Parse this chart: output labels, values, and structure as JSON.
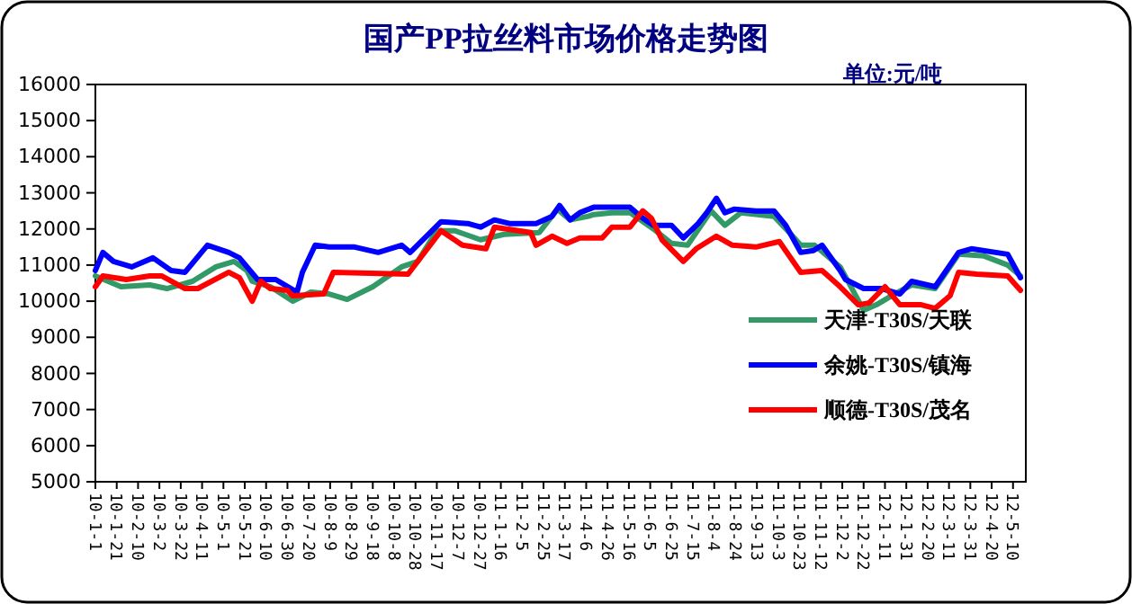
{
  "chart_data": {
    "type": "line",
    "title": "国产PP拉丝料市场价格走势图",
    "annotations": [
      "单位:元/吨"
    ],
    "xlim": [
      "2010-01-01",
      "2012-05-22"
    ],
    "xticks": [
      {
        "value": "2010-01-01",
        "label": "10-1-1"
      },
      {
        "value": "2010-01-21",
        "label": "10-1-21"
      },
      {
        "value": "2010-02-10",
        "label": "10-2-10"
      },
      {
        "value": "2010-03-02",
        "label": "10-3-2"
      },
      {
        "value": "2010-03-22",
        "label": "10-3-22"
      },
      {
        "value": "2010-04-11",
        "label": "10-4-11"
      },
      {
        "value": "2010-05-01",
        "label": "10-5-1"
      },
      {
        "value": "2010-05-21",
        "label": "10-5-21"
      },
      {
        "value": "2010-06-10",
        "label": "10-6-10"
      },
      {
        "value": "2010-06-30",
        "label": "10-6-30"
      },
      {
        "value": "2010-07-20",
        "label": "10-7-20"
      },
      {
        "value": "2010-08-09",
        "label": "10-8-9"
      },
      {
        "value": "2010-08-29",
        "label": "10-8-29"
      },
      {
        "value": "2010-09-18",
        "label": "10-9-18"
      },
      {
        "value": "2010-10-08",
        "label": "10-10-8"
      },
      {
        "value": "2010-10-28",
        "label": "10-10-28"
      },
      {
        "value": "2010-11-17",
        "label": "10-11-17"
      },
      {
        "value": "2010-12-07",
        "label": "10-12-7"
      },
      {
        "value": "2010-12-27",
        "label": "10-12-27"
      },
      {
        "value": "2011-01-16",
        "label": "11-1-16"
      },
      {
        "value": "2011-02-05",
        "label": "11-2-5"
      },
      {
        "value": "2011-02-25",
        "label": "11-2-25"
      },
      {
        "value": "2011-03-17",
        "label": "11-3-17"
      },
      {
        "value": "2011-04-06",
        "label": "11-4-6"
      },
      {
        "value": "2011-04-26",
        "label": "11-4-26"
      },
      {
        "value": "2011-05-16",
        "label": "11-5-16"
      },
      {
        "value": "2011-06-05",
        "label": "11-6-5"
      },
      {
        "value": "2011-06-25",
        "label": "11-6-25"
      },
      {
        "value": "2011-07-15",
        "label": "11-7-15"
      },
      {
        "value": "2011-08-04",
        "label": "11-8-4"
      },
      {
        "value": "2011-08-24",
        "label": "11-8-24"
      },
      {
        "value": "2011-09-13",
        "label": "11-9-13"
      },
      {
        "value": "2011-10-03",
        "label": "11-10-3"
      },
      {
        "value": "2011-10-23",
        "label": "11-10-23"
      },
      {
        "value": "2011-11-12",
        "label": "11-11-12"
      },
      {
        "value": "2011-12-02",
        "label": "11-12-2"
      },
      {
        "value": "2011-12-22",
        "label": "11-12-22"
      },
      {
        "value": "2012-01-11",
        "label": "12-1-11"
      },
      {
        "value": "2012-01-31",
        "label": "12-1-31"
      },
      {
        "value": "2012-02-20",
        "label": "12-2-20"
      },
      {
        "value": "2012-03-11",
        "label": "12-3-11"
      },
      {
        "value": "2012-03-31",
        "label": "12-3-31"
      },
      {
        "value": "2012-04-20",
        "label": "12-4-20"
      },
      {
        "value": "2012-05-10",
        "label": "12-5-10"
      }
    ],
    "ylim": [
      5000,
      16000
    ],
    "yticks": [
      5000,
      6000,
      7000,
      8000,
      9000,
      10000,
      11000,
      12000,
      13000,
      14000,
      15000,
      16000
    ],
    "grid": false,
    "legend": "bottom right",
    "marker": "none",
    "line_style": "solid",
    "series": [
      {
        "name": "天津-T30S/天联",
        "color": "#339966",
        "x": [
          "2010-01-01",
          "2010-01-09",
          "2010-01-25",
          "2010-02-21",
          "2010-03-09",
          "2010-04-02",
          "2010-04-24",
          "2010-05-11",
          "2010-05-23",
          "2010-05-28",
          "2010-06-14",
          "2010-07-05",
          "2010-07-22",
          "2010-08-08",
          "2010-08-25",
          "2010-09-18",
          "2010-10-15",
          "2010-10-30",
          "2010-11-17",
          "2010-12-04",
          "2010-12-28",
          "2011-01-19",
          "2011-02-21",
          "2011-03-10",
          "2011-03-22",
          "2011-04-08",
          "2011-04-13",
          "2011-04-30",
          "2011-05-17",
          "2011-06-08",
          "2011-06-25",
          "2011-07-10",
          "2011-08-01",
          "2011-08-14",
          "2011-08-29",
          "2011-09-29",
          "2011-10-15",
          "2011-10-24",
          "2011-11-06",
          "2011-11-30",
          "2011-12-22",
          "2012-01-03",
          "2012-01-20",
          "2012-02-05",
          "2012-02-27",
          "2012-03-20",
          "2012-04-13",
          "2012-05-05",
          "2012-05-17"
        ],
        "values": [
          10700,
          10600,
          10400,
          10450,
          10350,
          10550,
          10950,
          11100,
          10850,
          10550,
          10400,
          10000,
          10250,
          10200,
          10050,
          10400,
          10950,
          11100,
          11950,
          11950,
          11700,
          11850,
          11900,
          12550,
          12250,
          12350,
          12400,
          12450,
          12450,
          12000,
          11600,
          11550,
          12500,
          12100,
          12450,
          12350,
          11850,
          11550,
          11550,
          10950,
          9750,
          9900,
          10200,
          10450,
          10350,
          11300,
          11250,
          11000,
          10700
        ]
      },
      {
        "name": "余姚-T30S/镇海",
        "color": "#0000ff",
        "x": [
          "2010-01-01",
          "2010-01-08",
          "2010-01-18",
          "2010-02-04",
          "2010-02-24",
          "2010-03-13",
          "2010-03-26",
          "2010-04-16",
          "2010-05-06",
          "2010-05-16",
          "2010-06-02",
          "2010-06-19",
          "2010-07-09",
          "2010-07-14",
          "2010-07-26",
          "2010-08-08",
          "2010-09-01",
          "2010-09-23",
          "2010-10-15",
          "2010-10-23",
          "2010-11-21",
          "2010-12-16",
          "2010-12-28",
          "2011-01-10",
          "2011-01-24",
          "2011-02-18",
          "2011-03-05",
          "2011-03-12",
          "2011-03-22",
          "2011-03-31",
          "2011-04-13",
          "2011-05-17",
          "2011-05-29",
          "2011-06-08",
          "2011-06-25",
          "2011-07-06",
          "2011-07-20",
          "2011-07-28",
          "2011-08-06",
          "2011-08-14",
          "2011-08-23",
          "2011-09-12",
          "2011-09-29",
          "2011-10-10",
          "2011-10-24",
          "2011-11-05",
          "2011-11-13",
          "2011-11-30",
          "2011-12-05",
          "2011-12-22",
          "2012-01-08",
          "2012-01-25",
          "2012-02-05",
          "2012-02-27",
          "2012-03-20",
          "2012-04-01",
          "2012-05-05",
          "2012-05-17"
        ],
        "values": [
          10850,
          11350,
          11100,
          10950,
          11200,
          10850,
          10800,
          11550,
          11350,
          11200,
          10600,
          10600,
          10250,
          10800,
          11550,
          11500,
          11500,
          11350,
          11550,
          11350,
          12200,
          12150,
          12050,
          12250,
          12150,
          12150,
          12350,
          12650,
          12250,
          12450,
          12600,
          12600,
          12300,
          12100,
          12100,
          11750,
          12150,
          12450,
          12850,
          12450,
          12550,
          12500,
          12500,
          12100,
          11350,
          11400,
          11550,
          10850,
          10600,
          10350,
          10350,
          10200,
          10550,
          10400,
          11350,
          11450,
          11300,
          10650
        ]
      },
      {
        "name": "顺德-T30S/茂名",
        "color": "#ff0000",
        "x": [
          "2010-01-01",
          "2010-01-08",
          "2010-01-30",
          "2010-02-21",
          "2010-03-04",
          "2010-03-26",
          "2010-04-07",
          "2010-05-06",
          "2010-05-16",
          "2010-05-28",
          "2010-06-05",
          "2010-06-14",
          "2010-06-30",
          "2010-07-05",
          "2010-08-03",
          "2010-08-12",
          "2010-10-21",
          "2010-11-21",
          "2010-12-11",
          "2011-01-02",
          "2011-01-10",
          "2011-02-13",
          "2011-02-18",
          "2011-03-05",
          "2011-03-19",
          "2011-03-31",
          "2011-04-21",
          "2011-04-30",
          "2011-05-17",
          "2011-05-29",
          "2011-06-06",
          "2011-06-16",
          "2011-07-06",
          "2011-07-18",
          "2011-08-06",
          "2011-08-21",
          "2011-09-12",
          "2011-10-04",
          "2011-10-24",
          "2011-11-13",
          "2011-11-30",
          "2011-12-17",
          "2011-12-27",
          "2012-01-11",
          "2012-01-25",
          "2012-02-14",
          "2012-02-27",
          "2012-03-12",
          "2012-03-20",
          "2012-04-06",
          "2012-05-05",
          "2012-05-17"
        ],
        "values": [
          10400,
          10700,
          10600,
          10700,
          10700,
          10350,
          10350,
          10800,
          10650,
          10000,
          10550,
          10350,
          10300,
          10150,
          10200,
          10800,
          10750,
          11950,
          11550,
          11450,
          12050,
          11900,
          11550,
          11800,
          11600,
          11750,
          11750,
          12050,
          12050,
          12500,
          12300,
          11700,
          11100,
          11450,
          11800,
          11550,
          11500,
          11650,
          10800,
          10850,
          10400,
          9900,
          9950,
          10400,
          9900,
          9900,
          9800,
          10150,
          10800,
          10750,
          10700,
          10300
        ]
      }
    ]
  }
}
